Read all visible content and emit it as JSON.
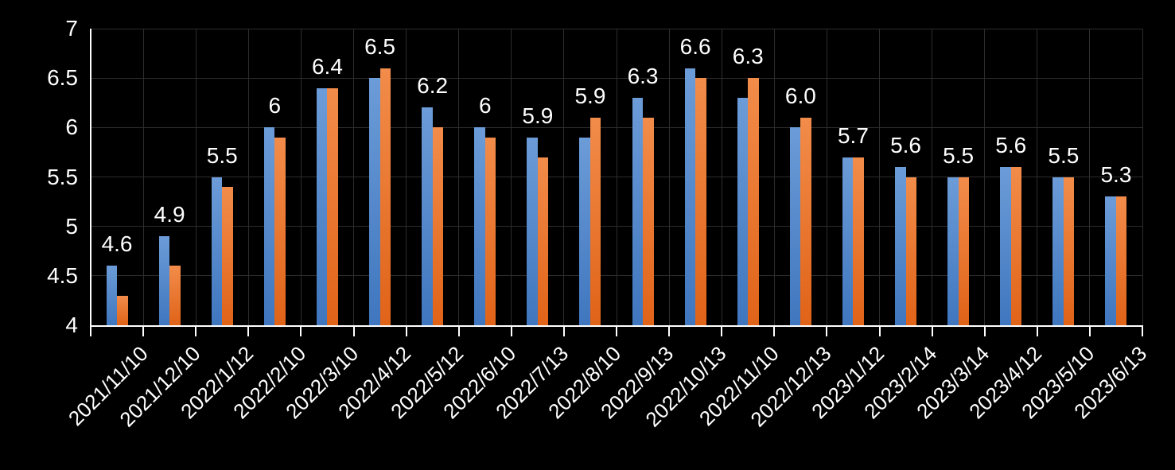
{
  "chart_data": {
    "type": "bar",
    "title": "",
    "categories": [
      "2021/11/10",
      "2021/12/10",
      "2022/1/12",
      "2022/2/10",
      "2022/3/10",
      "2022/4/12",
      "2022/5/12",
      "2022/6/10",
      "2022/7/13",
      "2022/8/10",
      "2022/9/13",
      "2022/10/13",
      "2022/11/10",
      "2022/12/13",
      "2023/1/12",
      "2023/2/14",
      "2023/3/14",
      "2023/4/12",
      "2023/5/10",
      "2023/6/13"
    ],
    "series": [
      {
        "name": "blue",
        "values": [
          4.6,
          4.9,
          5.5,
          6.0,
          6.4,
          6.5,
          6.2,
          6.0,
          5.9,
          5.9,
          6.3,
          6.6,
          6.3,
          6.0,
          5.7,
          5.6,
          5.5,
          5.6,
          5.5,
          5.3
        ]
      },
      {
        "name": "orange",
        "values": [
          4.3,
          4.6,
          5.4,
          5.9,
          6.4,
          6.6,
          6.0,
          5.9,
          5.7,
          6.1,
          6.1,
          6.5,
          6.5,
          6.1,
          5.7,
          5.5,
          5.5,
          5.6,
          5.5,
          5.3
        ]
      }
    ],
    "data_labels": [
      "4.6",
      "4.9",
      "5.5",
      "6",
      "6.4",
      "6.5",
      "6.2",
      "6",
      "5.9",
      "5.9",
      "6.3",
      "6.6",
      "6.3",
      "6.0",
      "5.7",
      "5.6",
      "5.5",
      "5.6",
      "5.5",
      "5.3"
    ],
    "xlabel": "",
    "ylabel": "",
    "ylim": [
      4,
      7
    ],
    "ytick_step": 0.5,
    "ytick_labels": [
      "7",
      "6.5",
      "6",
      "5.5",
      "5",
      "4.5",
      "4"
    ],
    "grid": true,
    "legend_position": "none",
    "colors": {
      "background": "#000000",
      "gridline": "#2d2d2d",
      "axis": "#ffffff",
      "text": "#ffffff",
      "blue_top": "#6C9CD8",
      "blue_bottom": "#3F76BE",
      "orange_top": "#F28C4A",
      "orange_bottom": "#E06318"
    }
  }
}
